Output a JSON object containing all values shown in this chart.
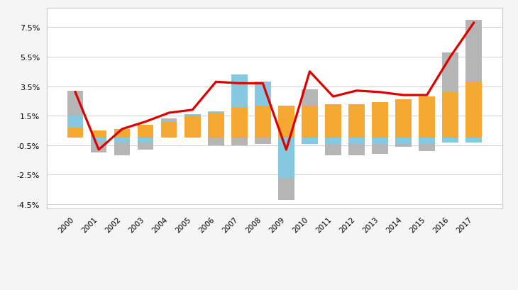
{
  "years": [
    2000,
    2001,
    2002,
    2003,
    2004,
    2005,
    2006,
    2007,
    2008,
    2009,
    2010,
    2011,
    2012,
    2013,
    2014,
    2015,
    2016,
    2017
  ],
  "trend": [
    0.7,
    0.5,
    0.6,
    0.9,
    1.1,
    1.5,
    1.7,
    2.1,
    2.2,
    2.2,
    2.2,
    2.3,
    2.3,
    2.4,
    2.6,
    2.8,
    3.1,
    3.8
  ],
  "cyclical": [
    0.8,
    -0.2,
    -0.3,
    -0.3,
    0.1,
    0.1,
    0.1,
    2.2,
    1.6,
    -2.7,
    -0.4,
    -0.4,
    -0.4,
    -0.4,
    -0.4,
    -0.4,
    -0.3,
    -0.3
  ],
  "residual": [
    1.7,
    -0.8,
    -0.9,
    -0.5,
    0.1,
    0.0,
    -0.5,
    -0.5,
    -0.4,
    -1.5,
    1.1,
    -0.8,
    -0.8,
    -0.7,
    -0.2,
    -0.5,
    2.7,
    4.2
  ],
  "pc_share": [
    3.1,
    -0.8,
    0.6,
    1.1,
    1.7,
    1.9,
    3.8,
    3.7,
    3.7,
    -0.8,
    4.5,
    2.8,
    3.2,
    3.1,
    2.9,
    2.9,
    5.5,
    7.8
  ],
  "trend_color": "#f5a832",
  "cyclical_color": "#85c8e0",
  "residual_color": "#b5b5b5",
  "pc_share_color": "#dd0000",
  "ylim": [
    -4.8,
    8.8
  ],
  "yticks": [
    -4.5,
    -2.5,
    -0.5,
    1.5,
    3.5,
    5.5,
    7.5
  ],
  "ytick_labels": [
    "-4.5%",
    "-2.5%",
    "-0.5%",
    "1.5%",
    "3.5%",
    "5.5%",
    "7.5%"
  ],
  "bg_color": "#f5f5f5",
  "plot_bg_color": "#ffffff",
  "grid_color": "#d0d0d0",
  "border_color": "#cccccc"
}
